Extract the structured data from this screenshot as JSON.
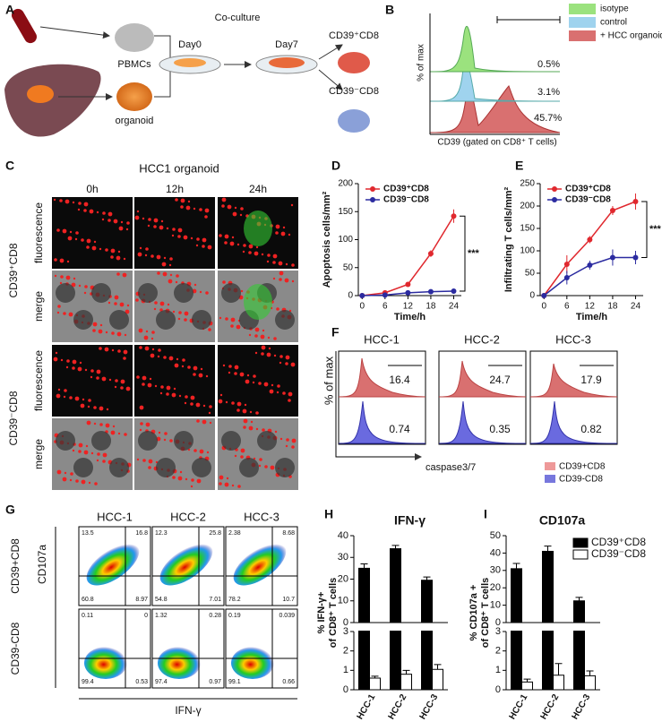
{
  "panel_labels": [
    "A",
    "B",
    "C",
    "D",
    "E",
    "F",
    "G",
    "H",
    "I"
  ],
  "A": {
    "pbmcs": "PBMCs",
    "organoid": "organoid",
    "coculture": "Co-culture",
    "day0": "Day0",
    "day7": "Day7",
    "pos": "CD39⁺CD8",
    "neg": "CD39⁻CD8"
  },
  "B": {
    "legend": [
      "isotype",
      "control",
      "+ HCC organoids"
    ],
    "ylabel": "% of max",
    "xlabel": "CD39 (gated on CD8⁺ T cells)",
    "percents": [
      "0.5%",
      "3.1%",
      "45.7%"
    ]
  },
  "C": {
    "title": "HCC1 organoid",
    "times": [
      "0h",
      "12h",
      "24h"
    ],
    "groups": [
      "CD39⁺CD8",
      "CD39⁻CD8"
    ],
    "rows": [
      "fluorescence",
      "merge"
    ]
  },
  "F": {
    "samples": [
      "HCC-1",
      "HCC-2",
      "HCC-3"
    ],
    "numbers": [
      [
        "16.4",
        "0.74"
      ],
      [
        "24.7",
        "0.35"
      ],
      [
        "17.9",
        "0.82"
      ]
    ],
    "ylabel": "% of max",
    "xlabel": "caspase3/7",
    "legend": [
      "CD39+CD8",
      "CD39-CD8"
    ]
  },
  "G": {
    "samples": [
      "HCC-1",
      "HCC-2",
      "HCC-3"
    ],
    "groups": [
      "CD39+CD8",
      "CD39-CD8"
    ],
    "ylabel": "CD107a",
    "xlabel": "IFN-γ",
    "quadrants": [
      [
        [
          "13.5",
          "16.8",
          "60.8",
          "8.97"
        ],
        [
          "12.3",
          "25.8",
          "54.8",
          "7.01"
        ],
        [
          "2.38",
          "8.68",
          "78.2",
          "10.7"
        ]
      ],
      [
        [
          "0.11",
          "0",
          "99.4",
          "0.53"
        ],
        [
          "1.32",
          "0.28",
          "97.4",
          "0.97"
        ],
        [
          "0.19",
          "0.039",
          "99.1",
          "0.66"
        ]
      ]
    ]
  },
  "chart_data": [
    {
      "type": "line",
      "ylabel": "Apoptosis cells/mm²",
      "xlabel": "Time/h",
      "x": [
        0,
        6,
        12,
        18,
        24
      ],
      "xlim": [
        -1,
        26
      ],
      "xticks": [
        0,
        6,
        12,
        18,
        24
      ],
      "ylim": [
        0,
        200
      ],
      "yticks": [
        0,
        50,
        100,
        150,
        200
      ],
      "annotation": "***",
      "series": [
        {
          "name": "CD39⁺CD8",
          "color": "#e0282e",
          "values": [
            0,
            5,
            20,
            75,
            142
          ],
          "errors": [
            0,
            2,
            4,
            6,
            12
          ]
        },
        {
          "name": "CD39⁻CD8",
          "color": "#2b2ba0",
          "values": [
            0,
            1,
            5,
            7,
            8
          ],
          "errors": [
            0,
            1,
            2,
            2,
            2
          ]
        }
      ]
    },
    {
      "type": "line",
      "ylabel": "Infiltrating T cells/mm²",
      "xlabel": "Time/h",
      "x": [
        0,
        6,
        12,
        18,
        24
      ],
      "xlim": [
        -1,
        26
      ],
      "xticks": [
        0,
        6,
        12,
        18,
        24
      ],
      "ylim": [
        0,
        250
      ],
      "yticks": [
        0,
        50,
        100,
        150,
        200,
        250
      ],
      "annotation": "***",
      "series": [
        {
          "name": "CD39⁺CD8",
          "color": "#e0282e",
          "values": [
            0,
            70,
            125,
            190,
            210
          ],
          "errors": [
            0,
            20,
            8,
            10,
            18
          ]
        },
        {
          "name": "CD39⁻CD8",
          "color": "#2b2ba0",
          "values": [
            0,
            40,
            68,
            85,
            85
          ],
          "errors": [
            0,
            15,
            10,
            18,
            15
          ]
        }
      ]
    },
    {
      "type": "broken-bar",
      "title": "IFN-γ",
      "ylabel": [
        "% IFN-γ+",
        "of CD8⁺ T cells"
      ],
      "categories": [
        "HCC-1",
        "HCC-2",
        "HCC-3"
      ],
      "segments": [
        {
          "ylim": [
            0,
            3
          ],
          "yticks": [
            0,
            1,
            2,
            3
          ]
        },
        {
          "ylim": [
            0,
            40
          ],
          "yticks": [
            0,
            10,
            20,
            30,
            40
          ]
        }
      ],
      "series": [
        {
          "color": "#000000",
          "values": [
            25,
            34,
            19.5
          ],
          "errors": [
            2,
            1.5,
            1.5
          ]
        },
        {
          "color": "#ffffff",
          "values": [
            0.6,
            0.8,
            1.05
          ],
          "errors": [
            0.1,
            0.2,
            0.25
          ]
        }
      ]
    },
    {
      "type": "broken-bar",
      "title": "CD107a",
      "ylabel": [
        "% CD107a +",
        "of CD8⁺ T cells"
      ],
      "categories": [
        "HCC-1",
        "HCC-2",
        "HCC-3"
      ],
      "legend": "upper right",
      "segments": [
        {
          "ylim": [
            0,
            3
          ],
          "yticks": [
            0,
            1,
            2,
            3
          ]
        },
        {
          "ylim": [
            0,
            50
          ],
          "yticks": [
            0,
            10,
            20,
            30,
            40,
            50
          ]
        }
      ],
      "series": [
        {
          "name": "CD39⁺CD8",
          "color": "#000000",
          "values": [
            31,
            41,
            12.5
          ],
          "errors": [
            3,
            3,
            2
          ]
        },
        {
          "name": "CD39⁻CD8",
          "color": "#ffffff",
          "values": [
            0.4,
            0.75,
            0.72
          ],
          "errors": [
            0.15,
            0.6,
            0.25
          ]
        }
      ]
    }
  ]
}
